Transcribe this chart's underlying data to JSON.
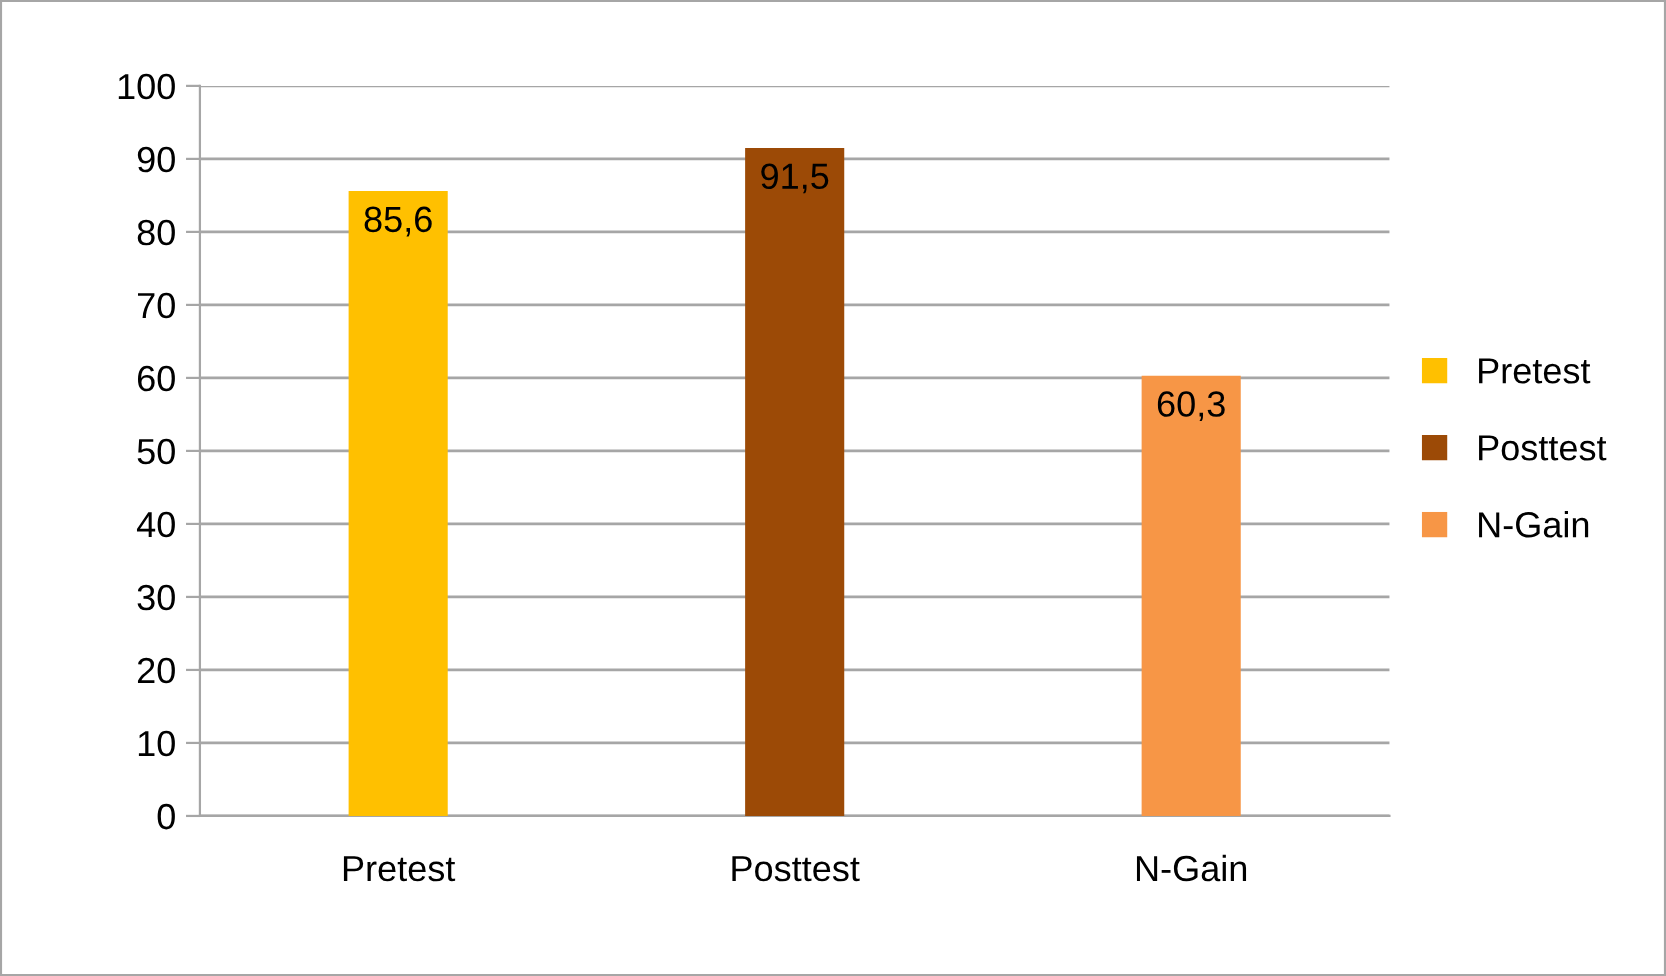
{
  "chart_data": {
    "type": "bar",
    "categories": [
      "Pretest",
      "Posttest",
      "N-Gain"
    ],
    "series": [
      {
        "name": "Pretest",
        "color": "#ffc000",
        "values": [
          85.6,
          null,
          null
        ],
        "value_labels": [
          "85,6",
          null,
          null
        ]
      },
      {
        "name": "Posttest",
        "color": "#9c4a06",
        "values": [
          null,
          91.5,
          null
        ],
        "value_labels": [
          null,
          "91,5",
          null
        ]
      },
      {
        "name": "N-Gain",
        "color": "#f79646",
        "values": [
          null,
          null,
          60.3
        ],
        "value_labels": [
          null,
          null,
          "60,3"
        ]
      }
    ],
    "ylim": [
      0,
      100
    ],
    "yticks": [
      0,
      10,
      20,
      30,
      40,
      50,
      60,
      70,
      80,
      90,
      100
    ],
    "grid": "y",
    "legend": "right"
  }
}
